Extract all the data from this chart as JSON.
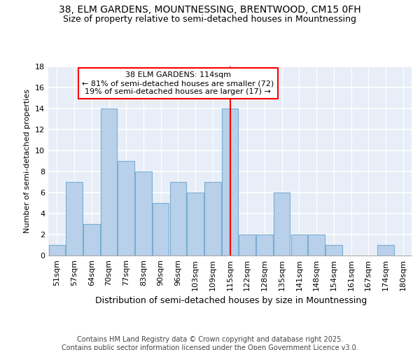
{
  "title1": "38, ELM GARDENS, MOUNTNESSING, BRENTWOOD, CM15 0FH",
  "title2": "Size of property relative to semi-detached houses in Mountnessing",
  "xlabel": "Distribution of semi-detached houses by size in Mountnessing",
  "ylabel": "Number of semi-detached properties",
  "categories": [
    "51sqm",
    "57sqm",
    "64sqm",
    "70sqm",
    "77sqm",
    "83sqm",
    "90sqm",
    "96sqm",
    "103sqm",
    "109sqm",
    "115sqm",
    "122sqm",
    "128sqm",
    "135sqm",
    "141sqm",
    "148sqm",
    "154sqm",
    "161sqm",
    "167sqm",
    "174sqm",
    "180sqm"
  ],
  "values": [
    1,
    7,
    3,
    14,
    9,
    8,
    5,
    7,
    6,
    7,
    14,
    2,
    2,
    6,
    2,
    2,
    1,
    0,
    0,
    1,
    0
  ],
  "bar_color": "#b8d0ea",
  "bar_edge_color": "#7aadd4",
  "vline_x_index": 10,
  "vline_color": "red",
  "annotation_line1": "38 ELM GARDENS: 114sqm",
  "annotation_line2": "← 81% of semi-detached houses are smaller (72)",
  "annotation_line3": "19% of semi-detached houses are larger (17) →",
  "annotation_box_color": "red",
  "ylim": [
    0,
    18
  ],
  "yticks": [
    0,
    2,
    4,
    6,
    8,
    10,
    12,
    14,
    16,
    18
  ],
  "footer": "Contains HM Land Registry data © Crown copyright and database right 2025.\nContains public sector information licensed under the Open Government Licence v3.0.",
  "background_color": "#e8eef8",
  "grid_color": "#ffffff",
  "title_fontsize": 10,
  "subtitle_fontsize": 9,
  "xlabel_fontsize": 9,
  "ylabel_fontsize": 8,
  "tick_fontsize": 8,
  "annot_fontsize": 8,
  "footer_fontsize": 7
}
